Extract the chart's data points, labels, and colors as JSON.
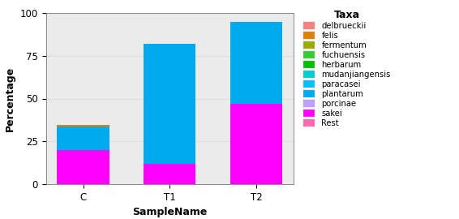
{
  "categories": [
    "C",
    "T1",
    "T2"
  ],
  "taxa": [
    {
      "name": "Rest",
      "color": "#FF69B4",
      "values": [
        0,
        0,
        0
      ]
    },
    {
      "name": "sakei",
      "color": "#FF00FF",
      "values": [
        20.0,
        12.0,
        47.0
      ]
    },
    {
      "name": "porcinae",
      "color": "#BF9FFF",
      "values": [
        0,
        0,
        0
      ]
    },
    {
      "name": "plantarum",
      "color": "#00AAEE",
      "values": [
        13.5,
        70.0,
        48.0
      ]
    },
    {
      "name": "paracasei",
      "color": "#00BFFF",
      "values": [
        0,
        0,
        0
      ]
    },
    {
      "name": "mudanjiangensis",
      "color": "#00CED1",
      "values": [
        0,
        0,
        0
      ]
    },
    {
      "name": "herbarum",
      "color": "#00C000",
      "values": [
        0,
        0,
        0
      ]
    },
    {
      "name": "fuchuensis",
      "color": "#32CD32",
      "values": [
        0,
        0,
        0
      ]
    },
    {
      "name": "fermentum",
      "color": "#9AAB00",
      "values": [
        0,
        0,
        0
      ]
    },
    {
      "name": "felis",
      "color": "#E08000",
      "values": [
        1.0,
        0,
        0
      ]
    },
    {
      "name": "delbrueckii",
      "color": "#FF8080",
      "values": [
        0,
        0,
        0
      ]
    }
  ],
  "legend_order": [
    "delbrueckii",
    "felis",
    "fermentum",
    "fuchuensis",
    "herbarum",
    "mudanjiangensis",
    "paracasei",
    "plantarum",
    "porcinae",
    "sakei",
    "Rest"
  ],
  "legend_colors": {
    "delbrueckii": "#FF8080",
    "felis": "#E08000",
    "fermentum": "#9AAB00",
    "fuchuensis": "#32CD32",
    "herbarum": "#00C000",
    "mudanjiangensis": "#00CED1",
    "paracasei": "#00BFFF",
    "plantarum": "#00AAEE",
    "porcinae": "#BF9FFF",
    "sakei": "#FF00FF",
    "Rest": "#FF69B4"
  },
  "title": "Taxa",
  "xlabel": "SampleName",
  "ylabel": "Percentage",
  "ylim": [
    0,
    100
  ],
  "yticks": [
    0,
    25,
    50,
    75,
    100
  ],
  "bar_width": 0.6,
  "background_color": "#FFFFFF",
  "grid_color": "#DDDDDD",
  "axis_bg": "#EBEBEB"
}
